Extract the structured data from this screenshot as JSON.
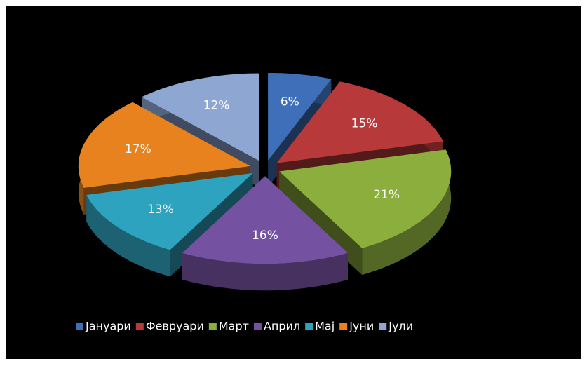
{
  "chart_data": {
    "type": "pie",
    "categories": [
      "Јануари",
      "Февруари",
      "Март",
      "Април",
      "Мај",
      "Јуни",
      "Јули"
    ],
    "values": [
      6,
      15,
      21,
      16,
      13,
      17,
      12
    ],
    "value_labels": [
      "6%",
      "15%",
      "21%",
      "16%",
      "13%",
      "17%",
      "12%"
    ],
    "colors": [
      "#3f6fb8",
      "#b8393a",
      "#8bae3c",
      "#7452a1",
      "#2ea3c0",
      "#e8821e",
      "#8ea7d2"
    ],
    "legend": "bottom"
  }
}
